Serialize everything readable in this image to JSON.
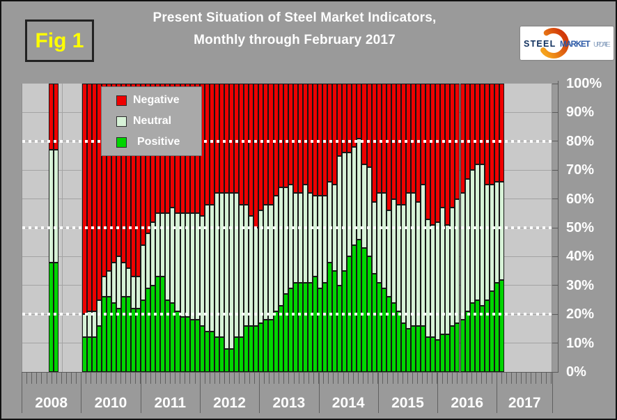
{
  "header": {
    "fig_label": "Fig 1",
    "title_line1": "Present Situation of Steel Market Indicators,",
    "title_line2": "Monthly through February 2017"
  },
  "logo": {
    "word1": "STEEL",
    "word2": "MARKET",
    "word3": "UPDATE"
  },
  "colors": {
    "background": "#9a9a9a",
    "plot_background": "#c9c9c9",
    "fig_label_text": "#ffff00",
    "title_text": "#ffffff",
    "negative": "#ee0000",
    "neutral": "#d7f2d7",
    "positive": "#00d500",
    "logo_steel": "#10305e",
    "logo_market": "#2a58a6",
    "logo_update": "#8fa5c2",
    "logo_arc_top": "#f5a11c",
    "logo_arc_bottom": "#d23a0a"
  },
  "chart_data": {
    "type": "bar",
    "stacked": "percent",
    "title": "Present Situation of Steel Market Indicators, Monthly through February 2017",
    "legend": [
      {
        "label": "Negative",
        "color": "#ee0000"
      },
      {
        "label": "Neutral",
        "color": "#d7f2d7"
      },
      {
        "label": "Positive",
        "color": "#00d500"
      }
    ],
    "legend_position": "top-left-inside",
    "grid": "horizontal-10pct",
    "ylim": [
      0,
      100
    ],
    "y_tick_labels": [
      "100%",
      "90%",
      "80%",
      "70%",
      "60%",
      "50%",
      "40%",
      "30%",
      "20%",
      "10%",
      "0%"
    ],
    "dotted_reference_lines_pct": [
      80,
      50,
      20
    ],
    "x_year_labels": [
      "2008",
      "2010",
      "2011",
      "2012",
      "2013",
      "2014",
      "2015",
      "2016",
      "2017"
    ],
    "values_note": "each bar = [positive, neutral, negative] percent, stacked bottom-to-top",
    "bars_2008": [
      [
        38,
        39,
        23
      ],
      [
        38,
        39,
        23
      ]
    ],
    "bars_monthly": {
      "2010": [
        [
          12,
          8,
          80
        ],
        [
          12,
          9,
          79
        ],
        [
          12,
          9,
          79
        ],
        [
          16,
          9,
          75
        ],
        [
          26,
          7,
          67
        ],
        [
          26,
          9,
          65
        ],
        [
          24,
          14,
          62
        ],
        [
          22,
          18,
          60
        ],
        [
          26,
          12,
          62
        ],
        [
          26,
          10,
          64
        ],
        [
          22,
          11,
          67
        ],
        [
          22,
          11,
          67
        ]
      ],
      "2011": [
        [
          25,
          19,
          56
        ],
        [
          29,
          19,
          52
        ],
        [
          30,
          22,
          48
        ],
        [
          33,
          22,
          45
        ],
        [
          33,
          22,
          45
        ],
        [
          25,
          30,
          45
        ],
        [
          24,
          33,
          43
        ],
        [
          21,
          34,
          45
        ],
        [
          19,
          36,
          45
        ],
        [
          19,
          36,
          45
        ],
        [
          18,
          37,
          45
        ],
        [
          18,
          37,
          45
        ]
      ],
      "2012": [
        [
          16,
          38,
          46
        ],
        [
          14,
          44,
          42
        ],
        [
          14,
          44,
          42
        ],
        [
          12,
          50,
          38
        ],
        [
          12,
          50,
          38
        ],
        [
          8,
          54,
          38
        ],
        [
          8,
          54,
          38
        ],
        [
          12,
          50,
          38
        ],
        [
          12,
          46,
          42
        ],
        [
          16,
          42,
          42
        ],
        [
          16,
          38,
          46
        ],
        [
          16,
          34,
          50
        ]
      ],
      "2013": [
        [
          17,
          39,
          44
        ],
        [
          18,
          40,
          42
        ],
        [
          18,
          40,
          42
        ],
        [
          21,
          40,
          39
        ],
        [
          23,
          41,
          36
        ],
        [
          27,
          37,
          36
        ],
        [
          29,
          36,
          35
        ],
        [
          31,
          31,
          38
        ],
        [
          31,
          31,
          38
        ],
        [
          31,
          34,
          35
        ],
        [
          31,
          31,
          38
        ],
        [
          33,
          28,
          39
        ]
      ],
      "2014": [
        [
          29,
          32,
          39
        ],
        [
          31,
          30,
          39
        ],
        [
          38,
          28,
          34
        ],
        [
          35,
          30,
          35
        ],
        [
          30,
          45,
          25
        ],
        [
          35,
          41,
          24
        ],
        [
          40,
          36,
          24
        ],
        [
          44,
          34,
          22
        ],
        [
          46,
          35,
          19
        ],
        [
          43,
          29,
          28
        ],
        [
          40,
          31,
          29
        ],
        [
          34,
          25,
          41
        ]
      ],
      "2015": [
        [
          31,
          31,
          38
        ],
        [
          29,
          33,
          38
        ],
        [
          26,
          30,
          44
        ],
        [
          24,
          36,
          40
        ],
        [
          21,
          37,
          42
        ],
        [
          17,
          41,
          42
        ],
        [
          15,
          47,
          38
        ],
        [
          16,
          46,
          38
        ],
        [
          16,
          43,
          41
        ],
        [
          16,
          49,
          35
        ],
        [
          12,
          41,
          47
        ],
        [
          12,
          39,
          49
        ]
      ],
      "2016": [
        [
          11,
          41,
          48
        ],
        [
          13,
          44,
          43
        ],
        [
          13,
          38,
          49
        ],
        [
          16,
          41,
          43
        ],
        [
          17,
          43,
          40
        ],
        [
          18,
          44,
          38
        ],
        [
          21,
          46,
          33
        ],
        [
          24,
          46,
          30
        ],
        [
          25,
          47,
          28
        ],
        [
          23,
          49,
          28
        ],
        [
          25,
          40,
          35
        ],
        [
          28,
          37,
          35
        ]
      ],
      "2017": [
        [
          31,
          35,
          34
        ],
        [
          32,
          34,
          34
        ]
      ]
    }
  }
}
